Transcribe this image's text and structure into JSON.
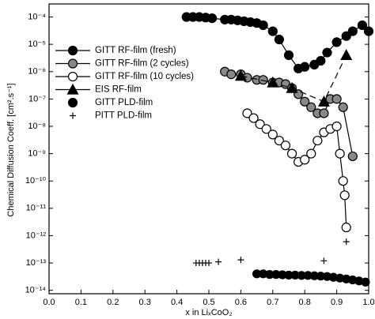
{
  "chart_data": {
    "type": "scatter",
    "xlabel": "x in LiₓCoO₂",
    "ylabel": "Chemical Diffusion Coeff. [cm².s⁻¹]",
    "xlim": [
      0,
      1
    ],
    "xticks": [
      {
        "value": 0,
        "label": "0.0"
      },
      {
        "value": 0.1,
        "label": "0.1"
      },
      {
        "value": 0.2,
        "label": "0.2"
      },
      {
        "value": 0.3,
        "label": "0.3"
      },
      {
        "value": 0.4,
        "label": "0.4"
      },
      {
        "value": 0.5,
        "label": "0.5"
      },
      {
        "value": 0.6,
        "label": "0.6"
      },
      {
        "value": 0.7,
        "label": "0.7"
      },
      {
        "value": 0.8,
        "label": "0.8"
      },
      {
        "value": 0.9,
        "label": "0.9"
      },
      {
        "value": 1,
        "label": "1.0"
      }
    ],
    "ylim": [
      7.5e-15,
      0.0003
    ],
    "ylog": true,
    "yticks": [
      {
        "value": 0.0001,
        "label": "10⁻⁴"
      },
      {
        "value": 1e-05,
        "label": "10⁻⁵"
      },
      {
        "value": 1e-06,
        "label": "10⁻⁶"
      },
      {
        "value": 1e-07,
        "label": "10⁻⁷"
      },
      {
        "value": 1e-08,
        "label": "10⁻⁸"
      },
      {
        "value": 1e-09,
        "label": "10⁻⁹"
      },
      {
        "value": 1e-10,
        "label": "10⁻¹⁰"
      },
      {
        "value": 1e-11,
        "label": "10⁻¹¹"
      },
      {
        "value": 1e-12,
        "label": "10⁻¹²"
      },
      {
        "value": 1e-13,
        "label": "10⁻¹³"
      },
      {
        "value": 1e-14,
        "label": "10⁻¹⁴"
      }
    ],
    "legend": "upper left",
    "series": [
      {
        "name": "GITT RF-film (fresh)",
        "color": "#000000",
        "marker": "circle",
        "linestyle": "solid",
        "x": [
          0.43,
          0.45,
          0.47,
          0.49,
          0.51,
          0.55,
          0.57,
          0.59,
          0.61,
          0.63,
          0.65,
          0.67,
          0.7,
          0.72,
          0.75,
          0.78,
          0.8,
          0.83,
          0.85,
          0.87,
          0.9,
          0.93,
          0.95,
          0.98,
          1.0
        ],
        "values": [
          0.0001,
          0.0001,
          0.0001,
          9.5e-05,
          9e-05,
          8e-05,
          8e-05,
          7.5e-05,
          7e-05,
          6.5e-05,
          6e-05,
          5e-05,
          3e-05,
          1.5e-05,
          4e-06,
          1.3e-06,
          1.5e-06,
          1.8e-06,
          2.5e-06,
          5e-06,
          1.2e-05,
          2e-05,
          3e-05,
          5e-05,
          3e-05
        ]
      },
      {
        "name": "GITT RF-film (2 cycles)",
        "color": "#888888",
        "marker": "circle",
        "linestyle": "solid",
        "x": [
          0.55,
          0.57,
          0.6,
          0.62,
          0.65,
          0.67,
          0.7,
          0.72,
          0.74,
          0.76,
          0.78,
          0.8,
          0.82,
          0.84,
          0.86,
          0.88,
          0.9,
          0.92,
          0.95
        ],
        "values": [
          1e-06,
          8e-07,
          8e-07,
          6e-07,
          5e-07,
          5e-07,
          4e-07,
          4e-07,
          3.5e-07,
          2.5e-07,
          1.5e-07,
          8e-08,
          5e-08,
          3e-08,
          3e-08,
          1e-07,
          1e-07,
          5e-08,
          8e-10
        ]
      },
      {
        "name": "GITT RF-film (10 cycles)",
        "color": "#ffffff",
        "marker": "circle",
        "linestyle": "solid",
        "x": [
          0.62,
          0.64,
          0.66,
          0.68,
          0.7,
          0.72,
          0.74,
          0.76,
          0.78,
          0.8,
          0.82,
          0.84,
          0.86,
          0.88,
          0.9,
          0.91,
          0.92,
          0.925,
          0.93
        ],
        "values": [
          3e-08,
          2e-08,
          1.2e-08,
          8e-09,
          5e-09,
          3e-09,
          2e-09,
          1e-09,
          5e-10,
          6e-10,
          1e-09,
          3e-09,
          6e-09,
          8e-09,
          1e-08,
          1e-09,
          1e-10,
          3e-11,
          2e-12
        ]
      },
      {
        "name": "EIS RF-film",
        "color": "#000000",
        "marker": "triangle",
        "linestyle": "dashed",
        "x": [
          0.6,
          0.7,
          0.76,
          0.86,
          0.93
        ],
        "values": [
          7e-07,
          4e-07,
          2.5e-07,
          8e-08,
          4e-06
        ]
      },
      {
        "name": "GITT PLD-film",
        "color": "#000000",
        "marker": "circle",
        "linestyle": "none",
        "x": [
          0.65,
          0.67,
          0.69,
          0.71,
          0.73,
          0.75,
          0.77,
          0.79,
          0.81,
          0.83,
          0.85,
          0.87,
          0.89,
          0.91,
          0.93,
          0.95,
          0.97,
          0.99
        ],
        "values": [
          4e-14,
          4e-14,
          3.8e-14,
          3.8e-14,
          3.7e-14,
          3.6e-14,
          3.6e-14,
          3.5e-14,
          3.5e-14,
          3.4e-14,
          3.3e-14,
          3.2e-14,
          3e-14,
          2.8e-14,
          2.6e-14,
          2.4e-14,
          2.2e-14,
          2e-14
        ]
      },
      {
        "name": "PITT PLD-film",
        "color": "#000000",
        "marker": "plus",
        "linestyle": "none",
        "x": [
          0.46,
          0.47,
          0.48,
          0.49,
          0.5,
          0.53,
          0.6,
          0.86,
          0.93
        ],
        "values": [
          1e-13,
          1e-13,
          1e-13,
          1e-13,
          1e-13,
          1.1e-13,
          1.3e-13,
          1.2e-13,
          6e-13
        ]
      }
    ]
  }
}
